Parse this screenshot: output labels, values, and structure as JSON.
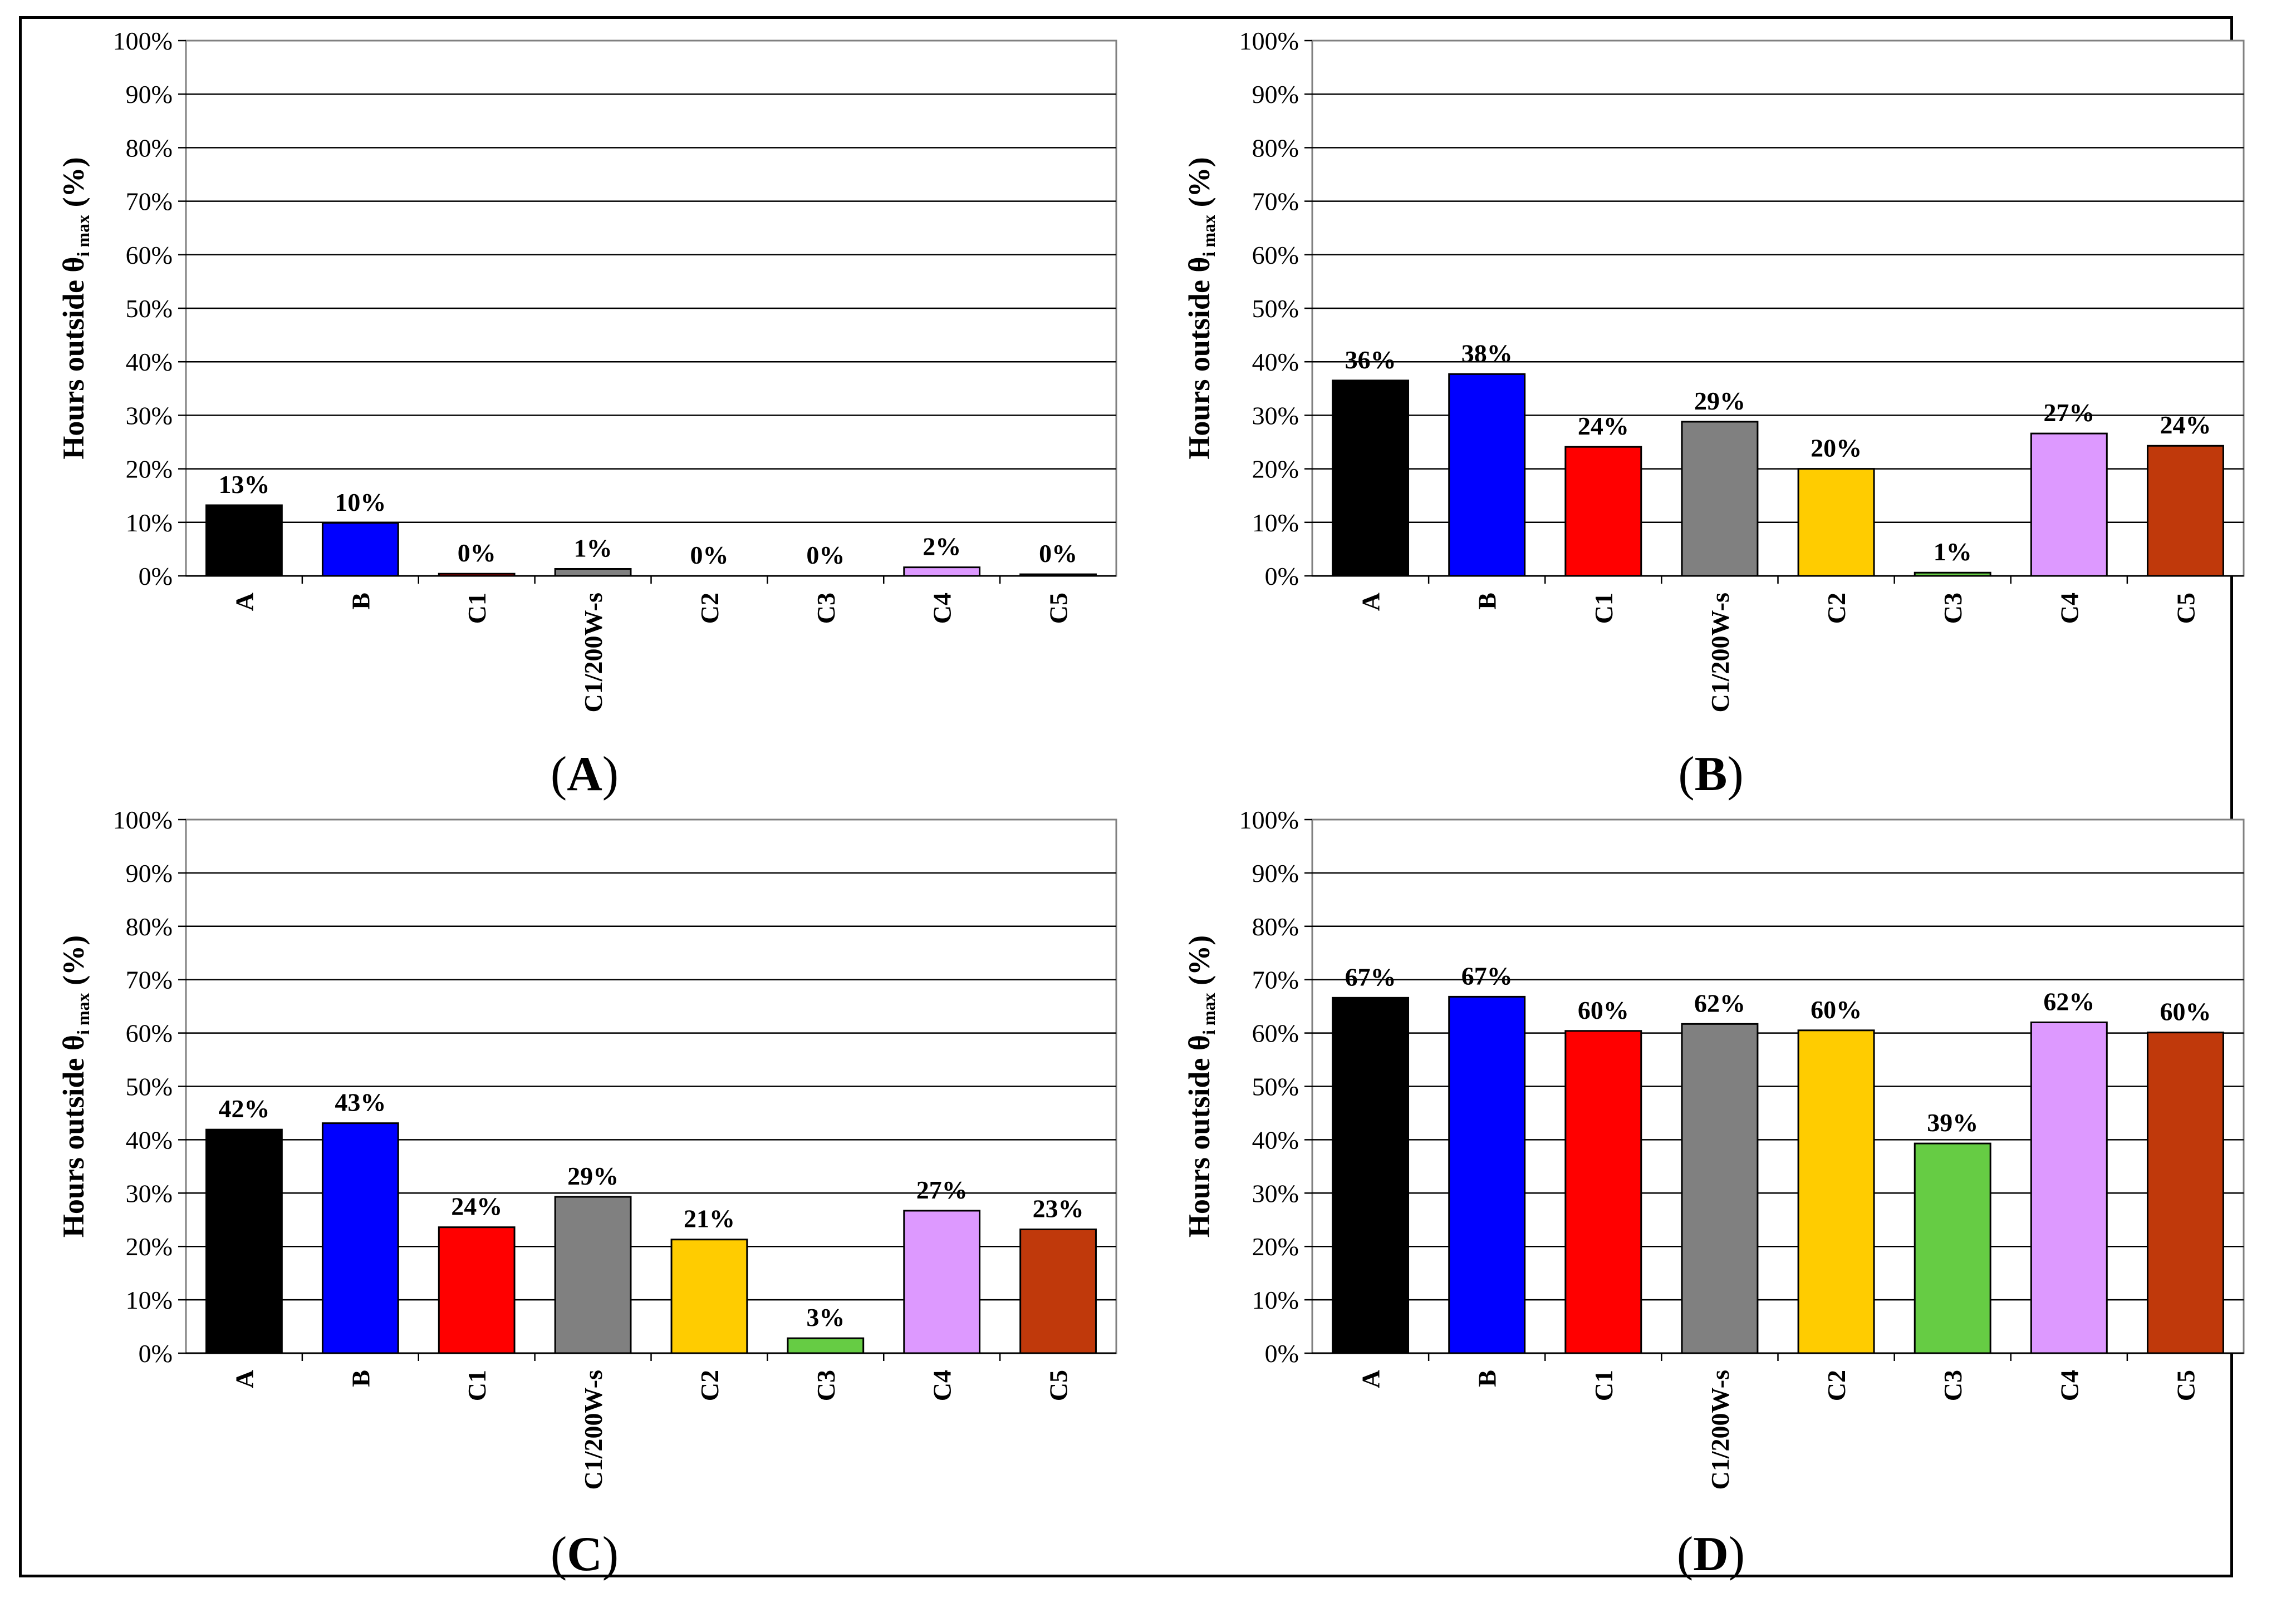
{
  "chart_data": [
    {
      "type": "bar",
      "panel": "A",
      "panel_label_open": "(",
      "panel_label_letter": "A",
      "panel_label_close": ")",
      "ylabel_main": "Hours outside θ",
      "ylabel_sub": "i max",
      "ylabel_unit": " (%)",
      "ylim": [
        0,
        100
      ],
      "yticks": [
        "0%",
        "10%",
        "20%",
        "30%",
        "40%",
        "50%",
        "60%",
        "70%",
        "80%",
        "90%",
        "100%"
      ],
      "categories": [
        "A",
        "B",
        "C1",
        "C1/200W-s",
        "C2",
        "C3",
        "C4",
        "C5"
      ],
      "colors": [
        "#000000",
        "#0000ff",
        "#ff0000",
        "#808080",
        "#ffcc00",
        "#66cc44",
        "#dd99ff",
        "#c0390b"
      ],
      "values": [
        13,
        10,
        0,
        1,
        0,
        0,
        2,
        0
      ],
      "bar_values": [
        13.2,
        9.9,
        0.4,
        1.3,
        0,
        0,
        1.6,
        0.3
      ],
      "value_labels": [
        "13%",
        "10%",
        "0%",
        "1%",
        "0%",
        "0%",
        "2%",
        "0%"
      ]
    },
    {
      "type": "bar",
      "panel": "B",
      "panel_label_open": "(",
      "panel_label_letter": "B",
      "panel_label_close": ")",
      "ylabel_main": "Hours outside θ",
      "ylabel_sub": "i max",
      "ylabel_unit": " (%)",
      "ylim": [
        0,
        100
      ],
      "yticks": [
        "0%",
        "10%",
        "20%",
        "30%",
        "40%",
        "50%",
        "60%",
        "70%",
        "80%",
        "90%",
        "100%"
      ],
      "categories": [
        "A",
        "B",
        "C1",
        "C1/200W-s",
        "C2",
        "C3",
        "C4",
        "C5"
      ],
      "colors": [
        "#000000",
        "#0000ff",
        "#ff0000",
        "#808080",
        "#ffcc00",
        "#66cc44",
        "#dd99ff",
        "#c0390b"
      ],
      "values": [
        36,
        38,
        24,
        29,
        20,
        1,
        27,
        24
      ],
      "bar_values": [
        36.5,
        37.7,
        24.1,
        28.8,
        20.0,
        0.6,
        26.6,
        24.3
      ],
      "value_labels": [
        "36%",
        "38%",
        "24%",
        "29%",
        "20%",
        "1%",
        "27%",
        "24%"
      ]
    },
    {
      "type": "bar",
      "panel": "C",
      "panel_label_open": "(",
      "panel_label_letter": "C",
      "panel_label_close": ")",
      "ylabel_main": "Hours outside θ",
      "ylabel_sub": "i max",
      "ylabel_unit": " (%)",
      "ylim": [
        0,
        100
      ],
      "yticks": [
        "0%",
        "10%",
        "20%",
        "30%",
        "40%",
        "50%",
        "60%",
        "70%",
        "80%",
        "90%",
        "100%"
      ],
      "categories": [
        "A",
        "B",
        "C1",
        "C1/200W-s",
        "C2",
        "C3",
        "C4",
        "C5"
      ],
      "colors": [
        "#000000",
        "#0000ff",
        "#ff0000",
        "#808080",
        "#ffcc00",
        "#66cc44",
        "#dd99ff",
        "#c0390b"
      ],
      "values": [
        42,
        43,
        24,
        29,
        21,
        3,
        27,
        23
      ],
      "bar_values": [
        41.9,
        43.1,
        23.6,
        29.3,
        21.3,
        2.8,
        26.7,
        23.2
      ],
      "value_labels": [
        "42%",
        "43%",
        "24%",
        "29%",
        "21%",
        "3%",
        "27%",
        "23%"
      ]
    },
    {
      "type": "bar",
      "panel": "D",
      "panel_label_open": "(",
      "panel_label_letter": "D",
      "panel_label_close": ")",
      "ylabel_main": "Hours outside θ",
      "ylabel_sub": "i max",
      "ylabel_unit": " (%)",
      "ylim": [
        0,
        100
      ],
      "yticks": [
        "0%",
        "10%",
        "20%",
        "30%",
        "40%",
        "50%",
        "60%",
        "70%",
        "80%",
        "90%",
        "100%"
      ],
      "categories": [
        "A",
        "B",
        "C1",
        "C1/200W-s",
        "C2",
        "C3",
        "C4",
        "C5"
      ],
      "colors": [
        "#000000",
        "#0000ff",
        "#ff0000",
        "#808080",
        "#ffcc00",
        "#66cc44",
        "#dd99ff",
        "#c0390b"
      ],
      "values": [
        67,
        67,
        60,
        62,
        60,
        39,
        62,
        60
      ],
      "bar_values": [
        66.6,
        66.8,
        60.4,
        61.7,
        60.5,
        39.3,
        62.0,
        60.1
      ],
      "value_labels": [
        "67%",
        "67%",
        "60%",
        "62%",
        "60%",
        "39%",
        "62%",
        "60%"
      ]
    }
  ]
}
